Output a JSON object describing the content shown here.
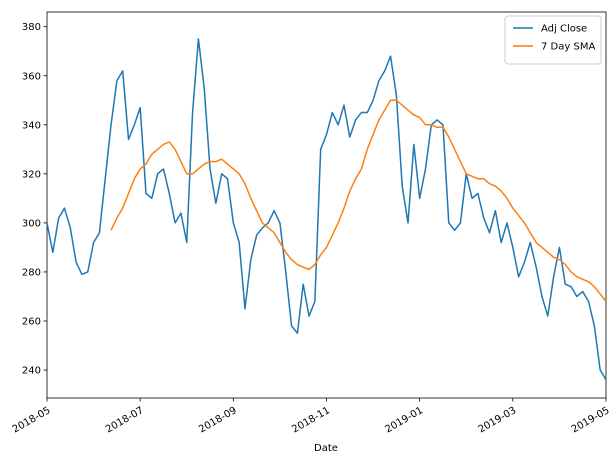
{
  "chart_data": {
    "type": "line",
    "xlabel": "Date",
    "categories": [
      "2018-05",
      null,
      null,
      null,
      null,
      null,
      null,
      null,
      null,
      null,
      null,
      null,
      null,
      null,
      null,
      null,
      "2018-07",
      null,
      null,
      null,
      null,
      null,
      null,
      null,
      null,
      null,
      null,
      null,
      null,
      null,
      null,
      null,
      "2018-09",
      null,
      null,
      null,
      null,
      null,
      null,
      null,
      null,
      null,
      null,
      null,
      null,
      null,
      null,
      null,
      "2018-11",
      null,
      null,
      null,
      null,
      null,
      null,
      null,
      null,
      null,
      null,
      null,
      null,
      null,
      null,
      null,
      "2019-01",
      null,
      null,
      null,
      null,
      null,
      null,
      null,
      null,
      null,
      null,
      null,
      null,
      null,
      null,
      null,
      "2019-03",
      null,
      null,
      null,
      null,
      null,
      null,
      null,
      null,
      null,
      null,
      null,
      null,
      null,
      null,
      null,
      "2019-05"
    ],
    "series": [
      {
        "name": "Adj Close",
        "color": "#1f77b4",
        "values": [
          300,
          288,
          302,
          306,
          298,
          284,
          279,
          280,
          292,
          296,
          318,
          340,
          358,
          362,
          334,
          340,
          347,
          312,
          310,
          320,
          322,
          312,
          300,
          304,
          292,
          345,
          375,
          355,
          322,
          308,
          320,
          318,
          300,
          292,
          265,
          285,
          295,
          298,
          300,
          305,
          300,
          280,
          258,
          255,
          275,
          262,
          268,
          330,
          336,
          345,
          340,
          348,
          335,
          342,
          345,
          345,
          350,
          358,
          362,
          368,
          352,
          315,
          300,
          332,
          310,
          322,
          340,
          342,
          340,
          300,
          297,
          300,
          320,
          310,
          312,
          302,
          296,
          305,
          292,
          300,
          290,
          278,
          284,
          292,
          282,
          270,
          262,
          278,
          290,
          275,
          274,
          270,
          272,
          268,
          258,
          240,
          236
        ]
      },
      {
        "name": "7 Day SMA",
        "color": "#ff7f0e",
        "values": [
          null,
          null,
          null,
          null,
          null,
          null,
          null,
          null,
          null,
          null,
          null,
          297,
          302,
          306,
          312,
          318,
          322,
          324,
          328,
          330,
          332,
          333,
          330,
          325,
          320,
          320,
          322,
          324,
          325,
          325,
          326,
          324,
          322,
          320,
          316,
          310,
          305,
          300,
          298,
          296,
          292,
          288,
          285,
          283,
          282,
          281,
          283,
          287,
          290,
          295,
          300,
          306,
          313,
          318,
          322,
          330,
          336,
          342,
          346,
          350,
          350,
          348,
          346,
          344,
          343,
          340,
          340,
          339,
          339,
          335,
          330,
          325,
          320,
          319,
          318,
          318,
          316,
          315,
          313,
          310,
          306,
          303,
          300,
          296,
          292,
          290,
          288,
          286,
          285,
          283,
          280,
          278,
          277,
          276,
          274,
          271,
          268
        ]
      }
    ],
    "ylim": [
      228.6,
      386
    ],
    "yticks": [
      240,
      260,
      280,
      300,
      320,
      340,
      360,
      380
    ],
    "legend": "upper right",
    "grid": false
  }
}
